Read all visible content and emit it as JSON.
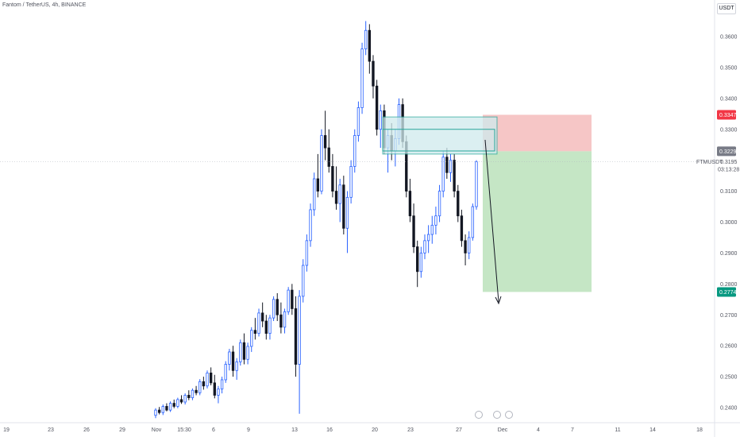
{
  "header": {
    "title": "Fantom / TetherUS, 4h, BINANCE",
    "currency": "USDT"
  },
  "symbol_tag": "FTMUSDT",
  "last_price_tag": "0.3195",
  "countdown": "03:13:28",
  "stop_tag": "0.3347",
  "entry_tag": "0.3229",
  "target_tag": "0.2774",
  "colors": {
    "up": "#2962ff",
    "down": "#131722",
    "stop_zone": "#f5bcbc",
    "profit_zone": "#bfe3bf",
    "zone_fill": "#cfeaed",
    "zone_border": "#26a69a",
    "stop_tag_bg": "#f23645",
    "entry_tag_bg": "#787b86",
    "target_tag_bg": "#089981"
  },
  "chart_data": {
    "type": "candlestick",
    "y_ticks": [
      "0.3600",
      "0.3500",
      "0.3400",
      "0.3300",
      "0.3100",
      "0.3000",
      "0.2900",
      "0.2800",
      "0.2700",
      "0.2600",
      "0.2500",
      "0.2400"
    ],
    "x_ticks": [
      "19",
      "23",
      "26",
      "29",
      "Nov",
      "15:30",
      "6",
      "9",
      "13",
      "16",
      "20",
      "23",
      "27",
      "Dec",
      "4",
      "7",
      "11",
      "14",
      "18"
    ],
    "ylim": [
      0.2375,
      0.365
    ],
    "candles": [
      [
        0.2375,
        0.2398,
        0.2366,
        0.2392
      ],
      [
        0.2392,
        0.2402,
        0.2378,
        0.2384
      ],
      [
        0.2384,
        0.241,
        0.2376,
        0.2404
      ],
      [
        0.2404,
        0.2414,
        0.2388,
        0.2392
      ],
      [
        0.2392,
        0.242,
        0.2386,
        0.2414
      ],
      [
        0.2414,
        0.2426,
        0.2398,
        0.2404
      ],
      [
        0.2404,
        0.2432,
        0.2398,
        0.2426
      ],
      [
        0.2426,
        0.244,
        0.2412,
        0.2418
      ],
      [
        0.2418,
        0.2446,
        0.241,
        0.244
      ],
      [
        0.244,
        0.2456,
        0.2424,
        0.2432
      ],
      [
        0.2432,
        0.2462,
        0.2424,
        0.2456
      ],
      [
        0.2456,
        0.247,
        0.244,
        0.2448
      ],
      [
        0.2448,
        0.2492,
        0.244,
        0.2484
      ],
      [
        0.2484,
        0.25,
        0.2458,
        0.247
      ],
      [
        0.247,
        0.252,
        0.2462,
        0.2512
      ],
      [
        0.2512,
        0.253,
        0.2472,
        0.248
      ],
      [
        0.248,
        0.2506,
        0.243,
        0.244
      ],
      [
        0.244,
        0.247,
        0.2414,
        0.246
      ],
      [
        0.246,
        0.25,
        0.2446,
        0.249
      ],
      [
        0.249,
        0.255,
        0.248,
        0.254
      ],
      [
        0.254,
        0.259,
        0.252,
        0.258
      ],
      [
        0.258,
        0.26,
        0.25,
        0.252
      ],
      [
        0.252,
        0.256,
        0.249,
        0.2548
      ],
      [
        0.2548,
        0.262,
        0.2536,
        0.261
      ],
      [
        0.261,
        0.264,
        0.254,
        0.2556
      ],
      [
        0.2556,
        0.261,
        0.254,
        0.2598
      ],
      [
        0.2598,
        0.266,
        0.258,
        0.265
      ],
      [
        0.265,
        0.269,
        0.262,
        0.264
      ],
      [
        0.264,
        0.272,
        0.263,
        0.2706
      ],
      [
        0.2706,
        0.274,
        0.266,
        0.268
      ],
      [
        0.268,
        0.27,
        0.262,
        0.264
      ],
      [
        0.264,
        0.27,
        0.262,
        0.269
      ],
      [
        0.269,
        0.276,
        0.268,
        0.275
      ],
      [
        0.275,
        0.277,
        0.268,
        0.27
      ],
      [
        0.27,
        0.274,
        0.264,
        0.266
      ],
      [
        0.266,
        0.272,
        0.264,
        0.271
      ],
      [
        0.271,
        0.279,
        0.27,
        0.278
      ],
      [
        0.278,
        0.28,
        0.27,
        0.272
      ],
      [
        0.272,
        0.276,
        0.25,
        0.254
      ],
      [
        0.254,
        0.278,
        0.238,
        0.276
      ],
      [
        0.276,
        0.288,
        0.274,
        0.286
      ],
      [
        0.286,
        0.296,
        0.284,
        0.294
      ],
      [
        0.294,
        0.306,
        0.292,
        0.304
      ],
      [
        0.304,
        0.316,
        0.302,
        0.314
      ],
      [
        0.314,
        0.322,
        0.308,
        0.31
      ],
      [
        0.31,
        0.33,
        0.309,
        0.328
      ],
      [
        0.328,
        0.336,
        0.32,
        0.324
      ],
      [
        0.324,
        0.33,
        0.316,
        0.318
      ],
      [
        0.318,
        0.322,
        0.308,
        0.31
      ],
      [
        0.31,
        0.318,
        0.304,
        0.306
      ],
      [
        0.306,
        0.314,
        0.3,
        0.312
      ],
      [
        0.312,
        0.315,
        0.296,
        0.298
      ],
      [
        0.298,
        0.31,
        0.29,
        0.308
      ],
      [
        0.308,
        0.32,
        0.306,
        0.318
      ],
      [
        0.318,
        0.33,
        0.316,
        0.328
      ],
      [
        0.328,
        0.339,
        0.326,
        0.337
      ],
      [
        0.337,
        0.358,
        0.335,
        0.356
      ],
      [
        0.356,
        0.365,
        0.354,
        0.362
      ],
      [
        0.362,
        0.364,
        0.348,
        0.352
      ],
      [
        0.352,
        0.354,
        0.34,
        0.344
      ],
      [
        0.344,
        0.346,
        0.328,
        0.33
      ],
      [
        0.33,
        0.338,
        0.324,
        0.336
      ],
      [
        0.336,
        0.338,
        0.322,
        0.324
      ],
      [
        0.324,
        0.33,
        0.316,
        0.328
      ],
      [
        0.328,
        0.332,
        0.32,
        0.323
      ],
      [
        0.323,
        0.33,
        0.318,
        0.327
      ],
      [
        0.327,
        0.34,
        0.325,
        0.338
      ],
      [
        0.338,
        0.34,
        0.324,
        0.326
      ],
      [
        0.326,
        0.328,
        0.308,
        0.31
      ],
      [
        0.31,
        0.314,
        0.3,
        0.302
      ],
      [
        0.302,
        0.306,
        0.29,
        0.292
      ],
      [
        0.292,
        0.294,
        0.279,
        0.284
      ],
      [
        0.284,
        0.292,
        0.282,
        0.29
      ],
      [
        0.29,
        0.296,
        0.288,
        0.294
      ],
      [
        0.294,
        0.299,
        0.29,
        0.296
      ],
      [
        0.296,
        0.302,
        0.293,
        0.299
      ],
      [
        0.299,
        0.305,
        0.296,
        0.302
      ],
      [
        0.302,
        0.312,
        0.3,
        0.31
      ],
      [
        0.31,
        0.323,
        0.308,
        0.321
      ],
      [
        0.321,
        0.324,
        0.314,
        0.316
      ],
      [
        0.316,
        0.322,
        0.313,
        0.32
      ],
      [
        0.32,
        0.322,
        0.308,
        0.31
      ],
      [
        0.31,
        0.312,
        0.3,
        0.302
      ],
      [
        0.302,
        0.304,
        0.292,
        0.294
      ],
      [
        0.294,
        0.296,
        0.286,
        0.29
      ],
      [
        0.29,
        0.297,
        0.288,
        0.295
      ],
      [
        0.295,
        0.306,
        0.294,
        0.305
      ],
      [
        0.305,
        0.32,
        0.304,
        0.3195
      ]
    ],
    "trade_setup": {
      "stop": 0.3347,
      "entry": 0.3229,
      "target": 0.2774,
      "zone_outer": [
        0.322,
        0.334
      ],
      "zone_inner": [
        0.323,
        0.33
      ]
    }
  }
}
